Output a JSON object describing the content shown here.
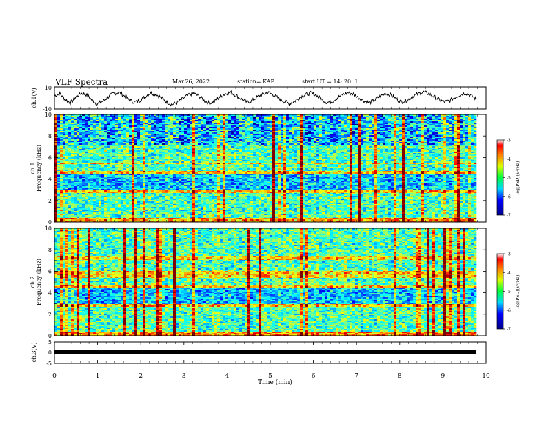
{
  "header": {
    "title": "VLF Spectra",
    "date": "Mar.26, 2022",
    "station": "station= KAP",
    "start_ut": "start  UT =   14: 20: 1"
  },
  "chart_data": [
    {
      "type": "line",
      "panel": "ch1-waveform",
      "ylabel": "ch.1(V)",
      "ylim": [
        -10,
        10
      ],
      "y_ticks": [
        "10",
        "-10"
      ],
      "xlim": [
        0,
        10
      ],
      "series": [
        {
          "values": [
            2.1,
            3.8,
            -1.2,
            -4.5,
            1.0,
            4.2,
            3.0,
            -2.0,
            -5.5,
            -3.1,
            0.5,
            3.9,
            5.2,
            2.0,
            -1.8,
            -4.0,
            -2.2,
            1.5,
            4.6,
            3.3,
            0.2,
            -3.5,
            -6.0,
            -4.2,
            -0.8,
            2.6,
            4.1,
            1.9,
            -2.4,
            -4.8,
            -3.0,
            1.2,
            3.7,
            5.0,
            2.2,
            -1.1,
            -3.9,
            -2.6,
            0.9,
            3.4,
            4.9,
            2.8,
            -0.5,
            -3.2,
            -5.1,
            -2.9,
            0.7,
            3.1,
            4.4,
            2.5,
            -1.4,
            -4.1,
            -3.3,
            0.3,
            2.9,
            4.7,
            3.5,
            0.1,
            -2.8,
            -4.4,
            -1.9,
            1.6,
            3.9,
            2.7,
            -0.9,
            -3.6,
            -2.1,
            1.1,
            3.6,
            5.3,
            4.0,
            1.3,
            -1.6,
            -3.7,
            -2.5,
            0.6,
            3.0,
            4.3,
            2.1,
            -1.0
          ]
        }
      ]
    },
    {
      "type": "heatmap",
      "panel": "ch1-spectrogram",
      "ylabel": "ch.1\nFrequency (kHz)",
      "ylim": [
        0,
        10
      ],
      "y_ticks": [
        "0",
        "2",
        "4",
        "6",
        "8",
        "10"
      ],
      "xlim": [
        0,
        10
      ],
      "colorbar": {
        "label": "log(PSD)(V²/Hz)",
        "range": [
          -7,
          -3
        ],
        "ticks": [
          "-3",
          "-4",
          "-5",
          "-6",
          "-7"
        ]
      }
    },
    {
      "type": "heatmap",
      "panel": "ch2-spectrogram",
      "ylabel": "ch.2\nFrequency (kHz)",
      "ylim": [
        0,
        10
      ],
      "y_ticks": [
        "0",
        "2",
        "4",
        "6",
        "8",
        "10"
      ],
      "xlim": [
        0,
        10
      ],
      "colorbar": {
        "label": "log(PSD)(V²/Hz)",
        "range": [
          -7,
          -3
        ],
        "ticks": [
          "-3",
          "-4",
          "-5",
          "-6",
          "-7"
        ]
      }
    },
    {
      "type": "line",
      "panel": "ch3-waveform",
      "ylabel": "ch.3(V)",
      "ylim": [
        -5,
        5
      ],
      "y_ticks": [
        "5",
        "0",
        "-5"
      ],
      "xlim": [
        0,
        10
      ],
      "xlabel": "Time  (min)",
      "x_ticks": [
        "0",
        "1",
        "2",
        "3",
        "4",
        "5",
        "6",
        "7",
        "8",
        "9",
        "10"
      ],
      "series": [
        {
          "values": [
            0,
            0
          ]
        }
      ]
    }
  ]
}
